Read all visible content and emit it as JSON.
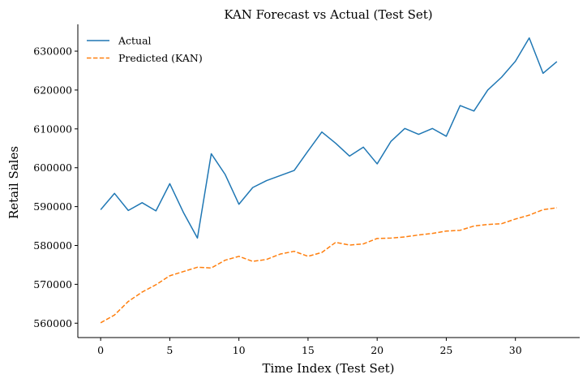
{
  "chart_data": {
    "type": "line",
    "title": "KAN Forecast vs Actual (Test Set)",
    "xlabel": "Time Index (Test Set)",
    "ylabel": "Retail Sales",
    "xlim": [
      -1.65,
      34.65
    ],
    "ylim": [
      556300,
      636900
    ],
    "x_ticks": [
      0,
      5,
      10,
      15,
      20,
      25,
      30
    ],
    "y_ticks": [
      560000,
      570000,
      580000,
      590000,
      600000,
      610000,
      620000,
      630000
    ],
    "x_tick_labels": [
      "0",
      "5",
      "10",
      "15",
      "20",
      "25",
      "30"
    ],
    "y_tick_labels": [
      "560000",
      "570000",
      "580000",
      "590000",
      "600000",
      "610000",
      "620000",
      "630000"
    ],
    "grid": false,
    "legend_position": "top-left",
    "x": [
      0,
      1,
      2,
      3,
      4,
      5,
      6,
      7,
      8,
      9,
      10,
      11,
      12,
      13,
      14,
      15,
      16,
      17,
      18,
      19,
      20,
      21,
      22,
      23,
      24,
      25,
      26,
      27,
      28,
      29,
      30,
      31,
      32,
      33
    ],
    "series": [
      {
        "name": "Actual",
        "color": "#1f77b4",
        "style": "solid",
        "values": [
          589200,
          593400,
          589000,
          591000,
          588900,
          595900,
          588400,
          581900,
          603600,
          598300,
          590600,
          594900,
          596700,
          598000,
          599300,
          604300,
          609200,
          606300,
          603000,
          605300,
          601000,
          606800,
          610100,
          608600,
          610100,
          608100,
          616000,
          614600,
          620000,
          623300,
          627400,
          633400,
          624300,
          627300
        ]
      },
      {
        "name": "Predicted (KAN)",
        "color": "#ff7f0e",
        "style": "dashed",
        "values": [
          560100,
          562100,
          565600,
          568000,
          569900,
          572200,
          573300,
          574400,
          574200,
          576200,
          577200,
          575900,
          576400,
          577800,
          578500,
          577200,
          578200,
          580800,
          580100,
          580400,
          581800,
          581900,
          582200,
          582700,
          583100,
          583700,
          583900,
          585000,
          585400,
          585600,
          586800,
          587800,
          589200,
          589700
        ]
      }
    ]
  }
}
